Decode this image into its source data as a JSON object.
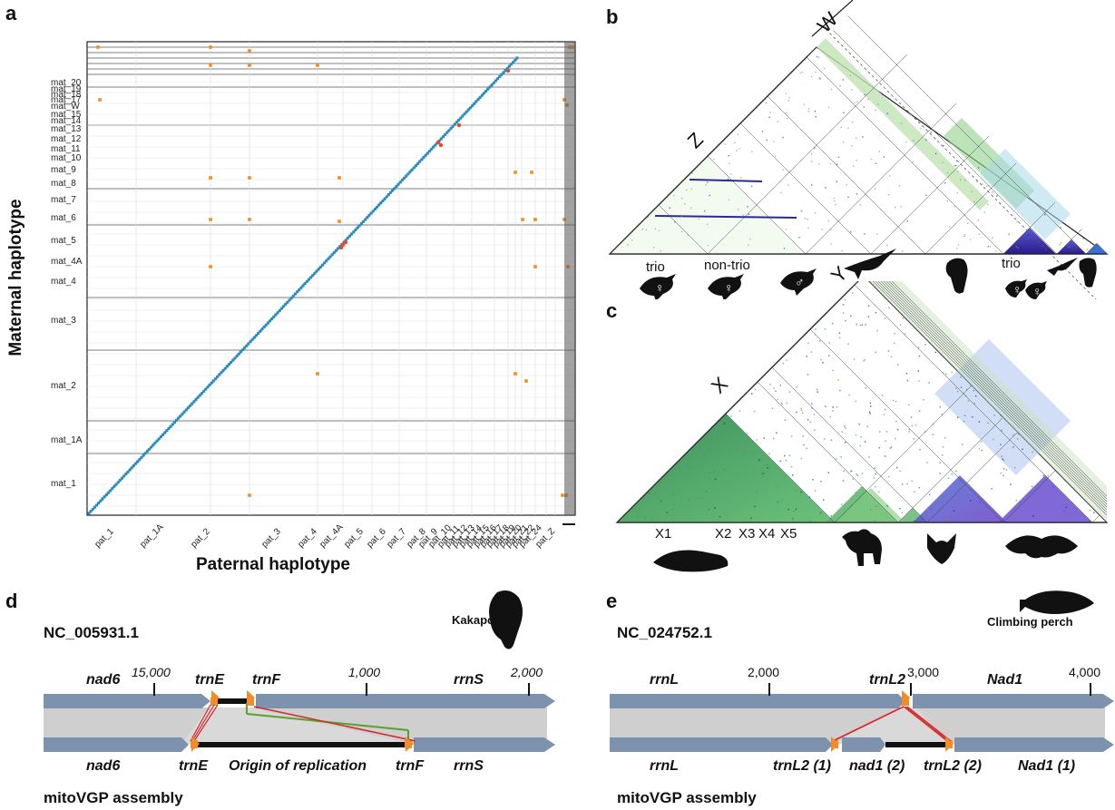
{
  "panels": {
    "a": {
      "letter": "a",
      "xlabel": "Paternal haplotype",
      "ylabel": "Maternal haplotype",
      "y_ticks": [
        "mat_20",
        "mat_19",
        "mat_18",
        "mat_17",
        "mat_W",
        "mat_15",
        "mat_14",
        "mat_13",
        "mat_12",
        "mat_11",
        "mat_10",
        "mat_9",
        "mat_8",
        "mat_7",
        "mat_6",
        "mat_5",
        "mat_4A",
        "mat_4",
        "mat_3",
        "mat_2",
        "mat_1A",
        "mat_1"
      ],
      "x_ticks": [
        "pat_1",
        "pat_1A",
        "pat_2",
        "pat_3",
        "pat_4",
        "pat_4A",
        "pat_5",
        "pat_6",
        "pat_7",
        "pat_8",
        "pat_9",
        "pat_10",
        "pat_11",
        "pat_12",
        "pat_13",
        "pat_14",
        "pat_15",
        "pat_16",
        "pat_17",
        "pat_18",
        "pat_19",
        "pat_20",
        "pat_21",
        "pat_22",
        "pat_24",
        "pat_Z"
      ],
      "colors": {
        "diagonal": "#2b8cbe",
        "inversion": "#e34a33",
        "offdiag": "#f28c28"
      }
    },
    "b": {
      "letter": "b",
      "chrom_labels": [
        "Z",
        "W"
      ],
      "sample_labels": [
        "trio",
        "non-trio",
        "trio"
      ],
      "sex_symbols": [
        "♀",
        "♀",
        "♂",
        "♀",
        "♀"
      ]
    },
    "c": {
      "letter": "c",
      "chrom_labels": [
        "X",
        "Y"
      ],
      "x_labels": [
        "X1",
        "X2",
        "X3",
        "X4",
        "X5"
      ]
    },
    "d": {
      "letter": "d",
      "accession": "NC_005931.1",
      "species": "Kakapo",
      "assembly_label": "mitoVGP assembly",
      "ticks": [
        "15,000",
        "1,000",
        "2,000"
      ],
      "ref_genes": [
        "nad6",
        "trnE",
        "trnF",
        "rrnS"
      ],
      "asm_genes": [
        "nad6",
        "trnE",
        "Origin of replication",
        "trnF",
        "rrnS"
      ]
    },
    "e": {
      "letter": "e",
      "accession": "NC_024752.1",
      "species": "Climbing perch",
      "assembly_label": "mitoVGP assembly",
      "ticks": [
        "2,000",
        "3,000",
        "4,000"
      ],
      "ref_genes": [
        "rrnL",
        "trnL2",
        "Nad1"
      ],
      "asm_genes": [
        "rrnL",
        "trnL2 (1)",
        "nad1 (2)",
        "trnL2 (2)",
        "Nad1 (1)"
      ]
    }
  }
}
